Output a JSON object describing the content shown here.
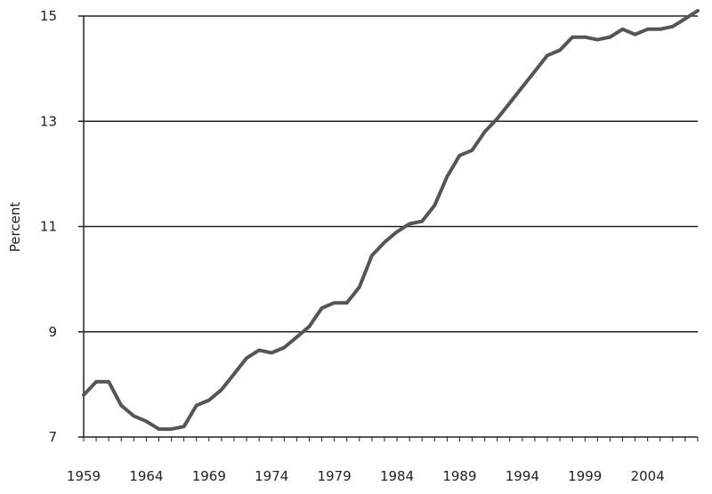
{
  "chart_data": {
    "type": "line",
    "title": "",
    "xlabel": "",
    "ylabel": "Percent",
    "xlim": [
      1959,
      2008
    ],
    "ylim": [
      7,
      15
    ],
    "x_tick_labels": [
      "1959",
      "1964",
      "1969",
      "1974",
      "1979",
      "1984",
      "1989",
      "1994",
      "1999",
      "2004"
    ],
    "y_tick_labels": [
      "7",
      "9",
      "11",
      "13",
      "15"
    ],
    "grid": "horizontal",
    "line_color": "#555555",
    "series": [
      {
        "x": [
          1959,
          1960,
          1961,
          1962,
          1963,
          1964,
          1965,
          1966,
          1967,
          1968,
          1969,
          1970,
          1971,
          1972,
          1973,
          1974,
          1975,
          1976,
          1977,
          1978,
          1979,
          1980,
          1981,
          1982,
          1983,
          1984,
          1985,
          1986,
          1987,
          1988,
          1989,
          1990,
          1991,
          1992,
          1993,
          1994,
          1995,
          1996,
          1997,
          1998,
          1999,
          2000,
          2001,
          2002,
          2003,
          2004,
          2005,
          2006,
          2007,
          2008
        ],
        "values": [
          7.8,
          8.05,
          8.05,
          7.6,
          7.4,
          7.3,
          7.15,
          7.15,
          7.2,
          7.6,
          7.7,
          7.9,
          8.2,
          8.5,
          8.65,
          8.6,
          8.7,
          8.9,
          9.1,
          9.45,
          9.55,
          9.55,
          9.85,
          10.45,
          10.7,
          10.9,
          11.05,
          11.1,
          11.4,
          11.95,
          12.35,
          12.45,
          12.8,
          13.05,
          13.35,
          13.65,
          13.95,
          14.25,
          14.35,
          14.6,
          14.6,
          14.55,
          14.6,
          14.75,
          14.65,
          14.75,
          14.75,
          14.8,
          14.95,
          15.1
        ]
      }
    ]
  }
}
